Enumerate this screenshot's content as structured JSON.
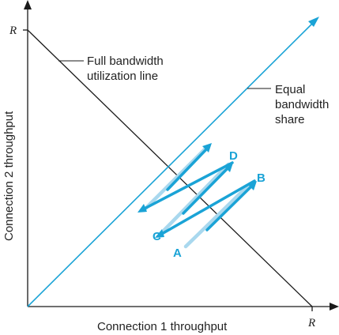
{
  "colors": {
    "axis": "#1a1a1a",
    "utilization_line": "#1a1a1a",
    "equal_share_line": "#1aa3d6",
    "arrow_dark": "#1aa3d6",
    "arrow_light": "#a9d8ee",
    "point_label": "#1aa3d6"
  },
  "axes": {
    "x_label": "Connection 1 throughput",
    "y_label": "Connection 2 throughput",
    "x_max_label": "R",
    "y_max_label": "R"
  },
  "annotations": {
    "full_bandwidth": [
      "Full bandwidth",
      "utilization line"
    ],
    "equal_share": [
      "Equal",
      "bandwidth",
      "share"
    ]
  },
  "points": {
    "A": "A",
    "B": "B",
    "C": "C",
    "D": "D"
  }
}
